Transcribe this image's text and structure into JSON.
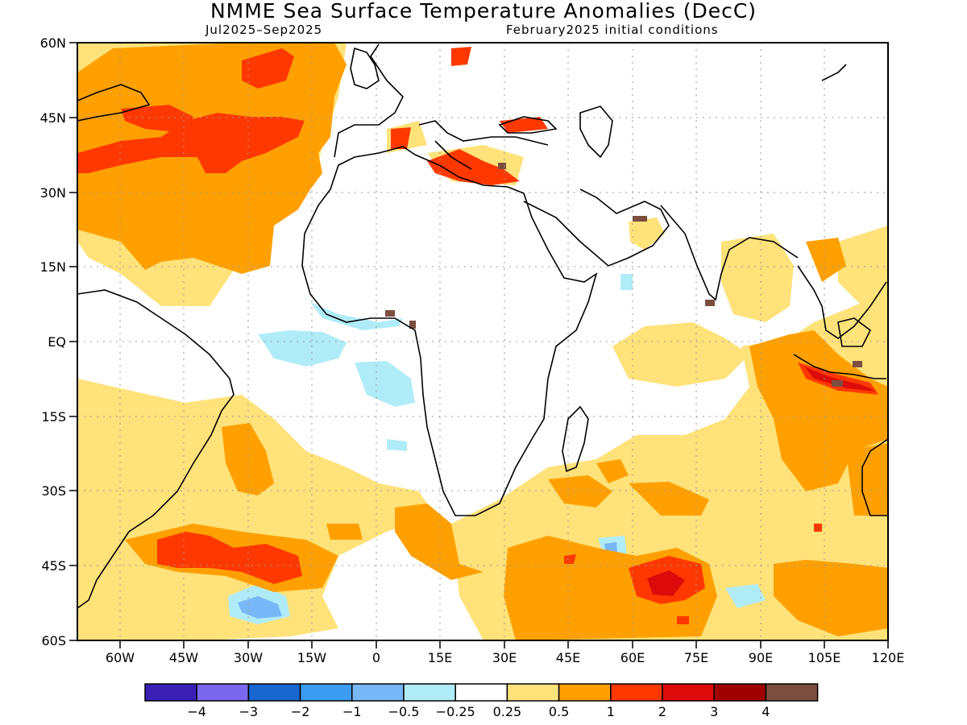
{
  "header": {
    "title": "NMME Sea Surface Temperature Anomalies (DecC)",
    "period": "Jul2025–Sep2025",
    "init": "February2025 initial conditions"
  },
  "map": {
    "lat_labels": [
      "60N",
      "45N",
      "30N",
      "15N",
      "EQ",
      "15S",
      "30S",
      "45S",
      "60S"
    ],
    "lon_labels": [
      "60W",
      "45W",
      "30W",
      "15W",
      "0",
      "15E",
      "30E",
      "45E",
      "60E",
      "75E",
      "90E",
      "105E",
      "120E"
    ],
    "lon_range": [
      -70,
      120
    ],
    "lat_range": [
      -60,
      60
    ]
  },
  "colorbar": {
    "colors": [
      "#3a1fb4",
      "#7b68ee",
      "#1866d0",
      "#3c9cf4",
      "#78b8f8",
      "#b0ecf8",
      "#ffffff",
      "#ffe27a",
      "#ffa000",
      "#ff3800",
      "#dc0a0a",
      "#a00000",
      "#7b4e40"
    ],
    "labels": [
      "−4",
      "−3",
      "−2",
      "−1",
      "−0.5",
      "−0.25",
      "0.25",
      "0.5",
      "1",
      "2",
      "3",
      "4"
    ]
  },
  "anomaly_colors": {
    "light_yellow": "#ffe27a",
    "orange": "#ffa000",
    "red_orange": "#ff3800",
    "red": "#dc0a0a",
    "brown": "#7b4e40",
    "light_cyan": "#b0ecf8",
    "light_blue": "#78b8f8"
  }
}
